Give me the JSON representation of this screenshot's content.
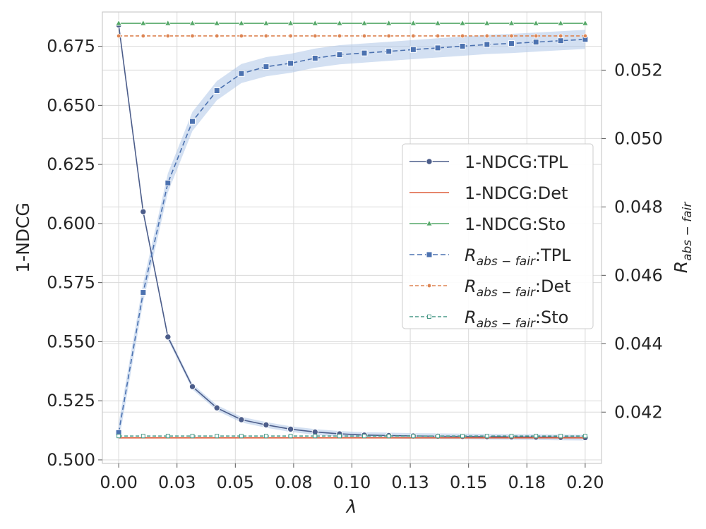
{
  "chart_data": {
    "type": "line",
    "xlabel": "λ",
    "ylabel_left": "1-NDCG",
    "ylabel_right_base": "R",
    "ylabel_right_sub": "abs − fair",
    "xlim": [
      -0.007,
      0.207
    ],
    "ylim_left": [
      0.4985,
      0.6895
    ],
    "ylim_right": [
      0.0405,
      0.0537
    ],
    "x_ticks": [
      0.0,
      0.025,
      0.05,
      0.075,
      0.1,
      0.125,
      0.15,
      0.175,
      0.2
    ],
    "x_tick_labels": [
      "0.00",
      "0.03",
      "0.05",
      "0.08",
      "0.10",
      "0.13",
      "0.15",
      "0.18",
      "0.20"
    ],
    "y_left_ticks": [
      0.5,
      0.525,
      0.55,
      0.575,
      0.6,
      0.625,
      0.65,
      0.675
    ],
    "y_left_tick_labels": [
      "0.500",
      "0.525",
      "0.550",
      "0.575",
      "0.600",
      "0.625",
      "0.650",
      "0.675"
    ],
    "y_right_ticks": [
      0.042,
      0.044,
      0.046,
      0.048,
      0.05,
      0.052
    ],
    "y_right_tick_labels": [
      "0.042",
      "0.044",
      "0.046",
      "0.048",
      "0.050",
      "0.052"
    ],
    "x": [
      0.0,
      0.0105,
      0.0211,
      0.0316,
      0.0421,
      0.0526,
      0.0632,
      0.0737,
      0.0842,
      0.0947,
      0.1053,
      0.1158,
      0.1263,
      0.1368,
      0.1474,
      0.1579,
      0.1684,
      0.1789,
      0.1895,
      0.2
    ],
    "legend": {
      "location": "center-right",
      "entries": [
        {
          "label": "1-NDCG:TPL",
          "label_html": [
            "1-NDCG:TPL"
          ]
        },
        {
          "label": "1-NDCG:Det",
          "label_html": [
            "1-NDCG:Det"
          ]
        },
        {
          "label": "1-NDCG:Sto",
          "label_html": [
            "1-NDCG:Sto"
          ]
        },
        {
          "label": "R_abs-fair:TPL",
          "base": "R",
          "sub": "abs − fair",
          "suffix": ":TPL"
        },
        {
          "label": "R_abs-fair:Det",
          "base": "R",
          "sub": "abs − fair",
          "suffix": ":Det"
        },
        {
          "label": "R_abs-fair:Sto",
          "base": "R",
          "sub": "abs − fair",
          "suffix": ":Sto"
        }
      ]
    },
    "series": [
      {
        "name": "1-NDCG:TPL",
        "axis": "left",
        "color": "#4c5d8a",
        "dash": "",
        "marker": "circle",
        "values": [
          0.684,
          0.605,
          0.552,
          0.531,
          0.522,
          0.517,
          0.5148,
          0.513,
          0.5118,
          0.511,
          0.5105,
          0.5103,
          0.5101,
          0.51,
          0.5099,
          0.5098,
          0.5097,
          0.5096,
          0.5095,
          0.5094
        ],
        "band": 0.0012
      },
      {
        "name": "1-NDCG:Det",
        "axis": "left",
        "color": "#dd5f3c",
        "dash": "",
        "marker": "none",
        "values": [
          0.5093,
          0.5093,
          0.5093,
          0.5093,
          0.5093,
          0.5093,
          0.5093,
          0.5093,
          0.5093,
          0.5093,
          0.5093,
          0.5093,
          0.5093,
          0.5093,
          0.5093,
          0.5093,
          0.5093,
          0.5093,
          0.5093,
          0.5093
        ]
      },
      {
        "name": "1-NDCG:Sto",
        "axis": "left",
        "color": "#55a868",
        "dash": "",
        "marker": "triangle",
        "values": [
          0.6847,
          0.6847,
          0.6847,
          0.6847,
          0.6847,
          0.6847,
          0.6847,
          0.6847,
          0.6847,
          0.6847,
          0.6847,
          0.6847,
          0.6847,
          0.6847,
          0.6847,
          0.6847,
          0.6847,
          0.6847,
          0.6847,
          0.6847
        ]
      },
      {
        "name": "R_abs-fair:TPL",
        "axis": "right",
        "color": "#4c72b0",
        "dash": "7,4",
        "marker": "square",
        "values": [
          0.0414,
          0.0455,
          0.0487,
          0.0505,
          0.0514,
          0.0519,
          0.0521,
          0.0522,
          0.05235,
          0.05245,
          0.0525,
          0.05255,
          0.0526,
          0.05265,
          0.0527,
          0.05275,
          0.05278,
          0.05282,
          0.05286,
          0.0529
        ],
        "band": 0.00028
      },
      {
        "name": "R_abs-fair:Det",
        "axis": "right",
        "color": "#dd8452",
        "dash": "5,3",
        "marker": "dot",
        "values": [
          0.053,
          0.053,
          0.053,
          0.053,
          0.053,
          0.053,
          0.053,
          0.053,
          0.053,
          0.053,
          0.053,
          0.053,
          0.053,
          0.053,
          0.053,
          0.053,
          0.053,
          0.053,
          0.053,
          0.053
        ]
      },
      {
        "name": "R_abs-fair:Sto",
        "axis": "right",
        "color": "#4a9a88",
        "dash": "5,3",
        "marker": "tiny-square",
        "values": [
          0.0413,
          0.0413,
          0.0413,
          0.0413,
          0.0413,
          0.0413,
          0.0413,
          0.0413,
          0.0413,
          0.0413,
          0.0413,
          0.0413,
          0.0413,
          0.0413,
          0.0413,
          0.0413,
          0.0413,
          0.0413,
          0.0413,
          0.0413
        ]
      }
    ]
  }
}
